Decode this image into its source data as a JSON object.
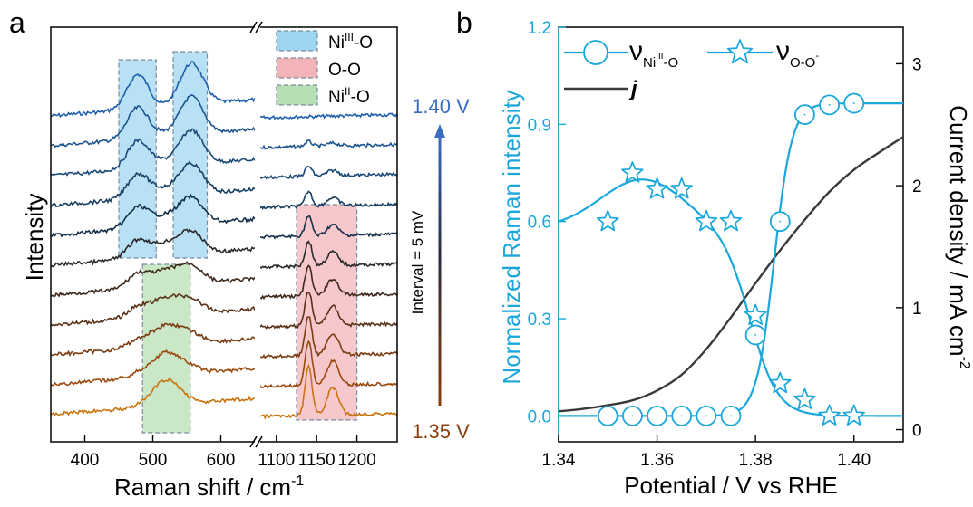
{
  "figure": {
    "panel_a_label": "a",
    "panel_b_label": "b"
  },
  "chart_data": [
    {
      "type": "line",
      "panel": "a",
      "xlabel": "Raman shift / cm",
      "xlabel_sup": "-1",
      "ylabel": "Intensity",
      "x_ticks_left": [
        400,
        500,
        600
      ],
      "x_ticks_right": [
        1100,
        1150,
        1200
      ],
      "xlim_left": [
        350,
        650
      ],
      "xlim_right": [
        1080,
        1250
      ],
      "potential_top": "1.40 V",
      "potential_bottom": "1.35 V",
      "interval_label": "Interval = 5 mV",
      "legend": [
        {
          "name": "Ni",
          "sup": "III",
          "suffix": "-O",
          "color": "#7ec8ec"
        },
        {
          "name": "O-O",
          "sup": "",
          "suffix": "",
          "color": "#ee9aa2"
        },
        {
          "name": "Ni",
          "sup": "II",
          "suffix": "-O",
          "color": "#9fd49a"
        }
      ],
      "regions": [
        {
          "label": "Ni(III)-O band 1",
          "x_range": [
            450,
            505
          ],
          "color": "#7ec8ec"
        },
        {
          "label": "Ni(III)-O band 2",
          "x_range": [
            530,
            580
          ],
          "color": "#7ec8ec"
        },
        {
          "label": "Ni(II)-O",
          "x_range": [
            485,
            555
          ],
          "color": "#9fd49a"
        },
        {
          "label": "O-O",
          "x_range": [
            1125,
            1200
          ],
          "color": "#ee9aa2"
        }
      ],
      "spectra_count": 11,
      "spectra_colors": [
        "#1f5fae",
        "#1c558f",
        "#1b4a78",
        "#173f62",
        "#14304a",
        "#2a2a2a",
        "#3f2a1c",
        "#5a3218",
        "#7a3c12",
        "#9a4a0e",
        "#c9740e"
      ]
    },
    {
      "type": "line",
      "panel": "b",
      "xlabel": "Potential / V vs RHE",
      "ylabel_left": "Normalized Raman intensity",
      "ylabel_right": "Current density / mA cm",
      "ylabel_right_sup": "-2",
      "xlim": [
        1.34,
        1.41
      ],
      "ylim_left": [
        -0.08,
        1.2
      ],
      "ylim_right": [
        -0.1,
        3.3
      ],
      "x_ticks": [
        "1.34",
        "1.36",
        "1.38",
        "1.40"
      ],
      "y_ticks_left": [
        "0.0",
        "0.3",
        "0.6",
        "0.9",
        "1.2"
      ],
      "y_ticks_right": [
        "0",
        "1",
        "2",
        "3"
      ],
      "legend": [
        {
          "label": "ν",
          "sub": "Ni",
          "sub_sup": "III",
          "sub_suffix": "-O",
          "marker": "circle"
        },
        {
          "label": "ν",
          "sub": "O-O",
          "sub_sup": "-",
          "sub_suffix": "",
          "marker": "star"
        },
        {
          "label": "j",
          "marker": "none"
        }
      ],
      "series": [
        {
          "name": "νNi(III)-O",
          "axis": "left",
          "color": "#1aa7dc",
          "marker": "circle",
          "x": [
            1.35,
            1.355,
            1.36,
            1.365,
            1.37,
            1.375,
            1.38,
            1.385,
            1.39,
            1.395,
            1.4
          ],
          "y": [
            0.0,
            0.0,
            0.0,
            0.0,
            0.0,
            0.0,
            0.25,
            0.6,
            0.93,
            0.96,
            0.965
          ]
        },
        {
          "name": "νO-O-",
          "axis": "left",
          "color": "#1aa7dc",
          "marker": "star",
          "x": [
            1.35,
            1.355,
            1.36,
            1.365,
            1.37,
            1.375,
            1.38,
            1.385,
            1.39,
            1.395,
            1.4
          ],
          "y": [
            0.6,
            0.75,
            0.7,
            0.7,
            0.6,
            0.6,
            0.31,
            0.1,
            0.05,
            0.0,
            0.0
          ]
        },
        {
          "name": "j",
          "axis": "right",
          "color": "#3a3a3a",
          "marker": "none",
          "x": [
            1.34,
            1.345,
            1.35,
            1.355,
            1.36,
            1.365,
            1.37,
            1.375,
            1.38,
            1.385,
            1.39,
            1.395,
            1.4,
            1.405,
            1.41
          ],
          "y": [
            0.15,
            0.17,
            0.2,
            0.24,
            0.32,
            0.45,
            0.66,
            0.92,
            1.2,
            1.47,
            1.72,
            1.95,
            2.13,
            2.27,
            2.4
          ]
        }
      ]
    }
  ]
}
